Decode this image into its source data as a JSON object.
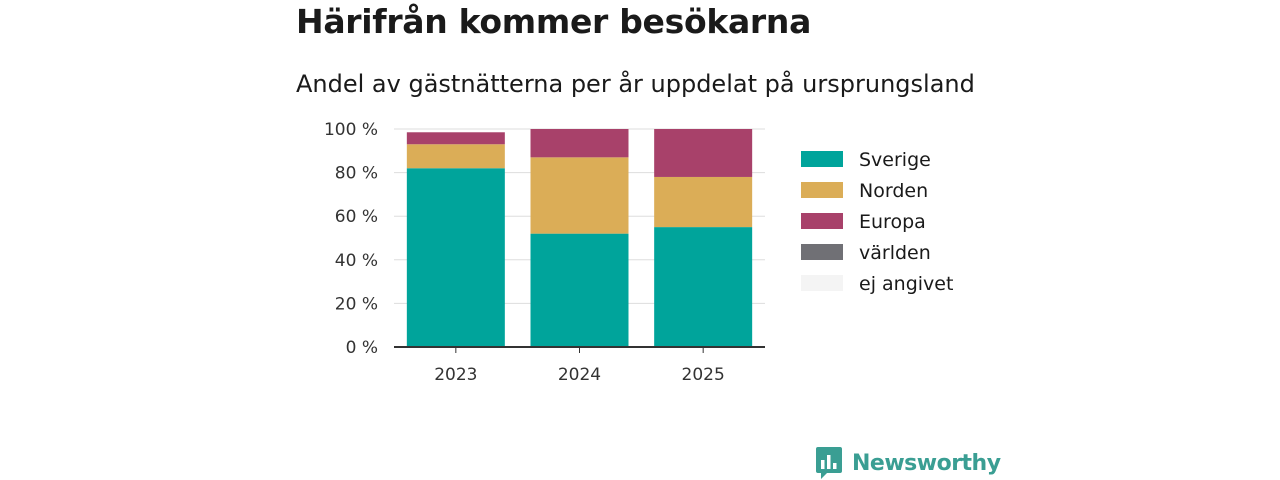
{
  "header": {
    "title": "Härifrån kommer besökarna",
    "subtitle": "Andel av gästnätterna per år uppdelat på ursprungsland"
  },
  "brand": {
    "name": "Newsworthy",
    "icon": "bar-chart-speech-bubble-icon",
    "color": "#3a9e93"
  },
  "chart_data": {
    "type": "bar",
    "stacked": true,
    "categories": [
      "2023",
      "2024",
      "2025"
    ],
    "series": [
      {
        "name": "Sverige",
        "color": "#00a49b",
        "values": [
          82,
          52,
          55
        ]
      },
      {
        "name": "Norden",
        "color": "#dbad57",
        "values": [
          11,
          35,
          23
        ]
      },
      {
        "name": "Europa",
        "color": "#a8416a",
        "values": [
          5.5,
          13,
          22
        ]
      },
      {
        "name": "världen",
        "color": "#707075",
        "values": [
          0,
          0,
          0
        ]
      },
      {
        "name": "ej angivet",
        "color": "#f4f4f4",
        "values": [
          0,
          0,
          0
        ]
      }
    ],
    "yticks": [
      0,
      20,
      40,
      60,
      80,
      100
    ],
    "ytick_suffix": " %",
    "ylim": [
      0,
      100
    ],
    "grid": true,
    "legend_position": "right"
  }
}
